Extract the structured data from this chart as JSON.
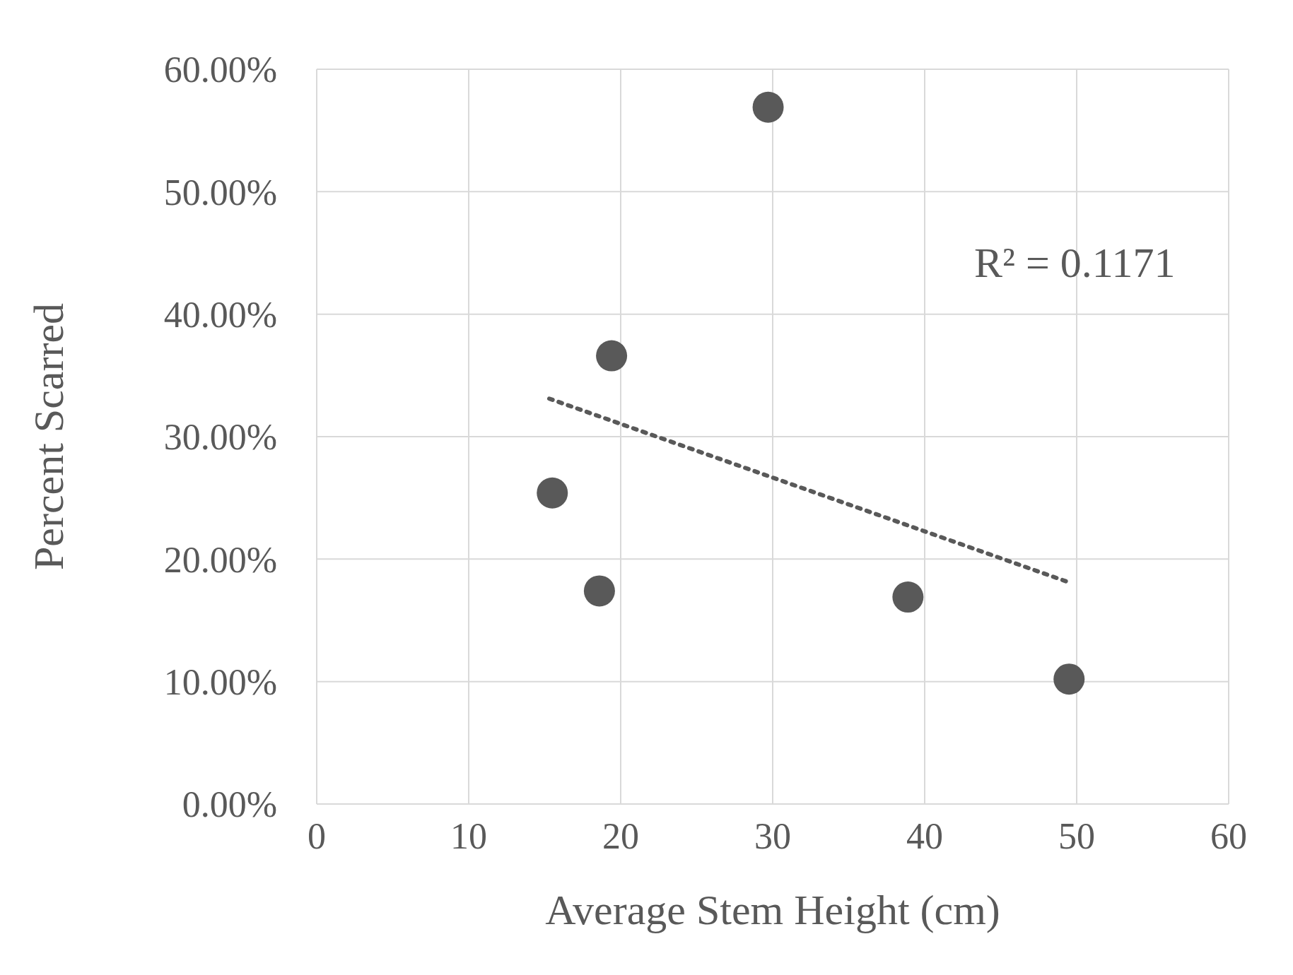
{
  "chart_data": {
    "type": "scatter",
    "xlabel": "Average Stem Height (cm)",
    "ylabel": "Percent Scarred",
    "x": [
      15.5,
      18.6,
      19.4,
      29.7,
      38.9,
      49.5
    ],
    "series": [
      {
        "color": "#595959",
        "marker": "circle",
        "values": [
          25.4,
          17.4,
          36.6,
          56.9,
          16.9,
          10.2
        ]
      },
      {
        "type": "line",
        "color": "#595959",
        "marker": "none",
        "line_style": "dotted",
        "x": [
          15.3,
          49.5
        ],
        "values": [
          33.1,
          18.1
        ]
      }
    ],
    "annotations": [
      "R² = 0.1171"
    ],
    "xlim": [
      0,
      60
    ],
    "xticks": [
      0,
      10,
      20,
      30,
      40,
      50,
      60
    ],
    "ylim": [
      0,
      60
    ],
    "yticks": [
      {
        "value": 0,
        "label": "0.00%"
      },
      {
        "value": 10,
        "label": "10.00%"
      },
      {
        "value": 20,
        "label": "20.00%"
      },
      {
        "value": 30,
        "label": "30.00%"
      },
      {
        "value": 40,
        "label": "40.00%"
      },
      {
        "value": 50,
        "label": "50.00%"
      },
      {
        "value": 60,
        "label": "60.00%"
      }
    ],
    "grid": true,
    "legend": false
  }
}
